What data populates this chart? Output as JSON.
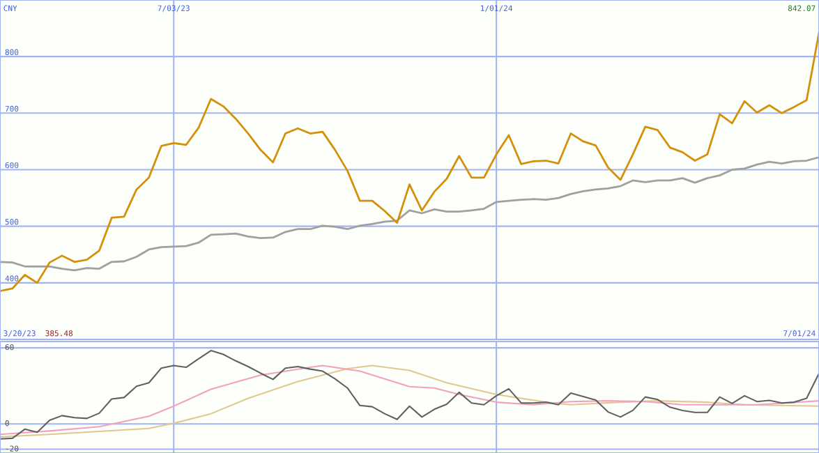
{
  "chart_data": [
    {
      "type": "line",
      "x": [
        "2023-03-27",
        "2023-04-03",
        "2023-04-10",
        "2023-04-17",
        "2023-04-24",
        "2023-05-01",
        "2023-05-08",
        "2023-05-15",
        "2023-05-22",
        "2023-05-29",
        "2023-06-05",
        "2023-06-12",
        "2023-06-19",
        "2023-06-26",
        "2023-07-03",
        "2023-07-10",
        "2023-07-17",
        "2023-07-24",
        "2023-07-31",
        "2023-08-07",
        "2023-08-14",
        "2023-08-21",
        "2023-08-28",
        "2023-09-04",
        "2023-09-11",
        "2023-09-18",
        "2023-09-25",
        "2023-10-02",
        "2023-10-09",
        "2023-10-16",
        "2023-10-23",
        "2023-10-30",
        "2023-11-06",
        "2023-11-13",
        "2023-11-20",
        "2023-11-27",
        "2023-12-04",
        "2023-12-11",
        "2023-12-18",
        "2023-12-25",
        "2024-01-01",
        "2024-01-08",
        "2024-01-15",
        "2024-01-22",
        "2024-01-29",
        "2024-02-05",
        "2024-02-12",
        "2024-02-19",
        "2024-02-26",
        "2024-03-04",
        "2024-03-11",
        "2024-03-18",
        "2024-03-25",
        "2024-04-01",
        "2024-04-08",
        "2024-04-15",
        "2024-04-22",
        "2024-04-29",
        "2024-05-06",
        "2024-05-13",
        "2024-05-20",
        "2024-05-27",
        "2024-06-03",
        "2024-06-10",
        "2024-06-17",
        "2024-06-24",
        "2024-07-01"
      ],
      "series": [
        {
          "color": "#a0a0a0",
          "values": [
            437,
            436,
            429,
            429,
            429,
            425,
            422,
            426,
            425,
            437,
            438,
            446,
            459,
            463,
            464,
            465,
            471,
            485,
            486,
            487,
            482,
            479,
            480,
            490,
            495,
            495,
            501,
            499,
            495,
            501,
            504,
            508,
            510,
            528,
            523,
            530,
            526,
            526,
            528,
            531,
            543,
            545,
            547,
            548,
            547,
            550,
            557,
            562,
            565,
            567,
            571,
            581,
            578,
            581,
            581,
            585,
            577,
            585,
            590,
            600,
            602,
            609,
            614,
            611,
            615,
            616,
            622
          ]
        },
        {
          "color": "#d4900a",
          "values": [
            385.48,
            390,
            414,
            400,
            436,
            448,
            437,
            441,
            457,
            515,
            517,
            565,
            586,
            642,
            647,
            644,
            674,
            725,
            712,
            690,
            664,
            635,
            613,
            664,
            673,
            664,
            667,
            635,
            598,
            545,
            545,
            527,
            506,
            574,
            528,
            561,
            584,
            624,
            586,
            586,
            627,
            661,
            610,
            615,
            616,
            611,
            664,
            650,
            643,
            604,
            582,
            627,
            676,
            670,
            639,
            631,
            616,
            627,
            698,
            682,
            721,
            701,
            714,
            700,
            711,
            723,
            842.07
          ]
        }
      ],
      "xlim": [
        "2023-03-27",
        "2024-07-01"
      ],
      "xticks": [
        {
          "value": "2023-07-03",
          "label": "7/03/23"
        },
        {
          "value": "2024-01-01",
          "label": "1/01/24"
        }
      ],
      "ylim": [
        300,
        900
      ],
      "yticks": [
        400,
        500,
        600,
        700,
        800
      ],
      "grid": true,
      "marker": "none",
      "line_style": "solid",
      "annotations": [
        "CNY",
        "842.07",
        "3/20/23",
        "385.48",
        "7/01/24"
      ]
    },
    {
      "type": "line",
      "x": [
        "2023-03-27",
        "2023-04-03",
        "2023-04-10",
        "2023-04-17",
        "2023-04-24",
        "2023-05-01",
        "2023-05-08",
        "2023-05-15",
        "2023-05-22",
        "2023-05-29",
        "2023-06-05",
        "2023-06-12",
        "2023-06-19",
        "2023-06-26",
        "2023-07-03",
        "2023-07-10",
        "2023-07-17",
        "2023-07-24",
        "2023-07-31",
        "2023-08-07",
        "2023-08-14",
        "2023-08-21",
        "2023-08-28",
        "2023-09-04",
        "2023-09-11",
        "2023-09-18",
        "2023-09-25",
        "2023-10-02",
        "2023-10-09",
        "2023-10-16",
        "2023-10-23",
        "2023-10-30",
        "2023-11-06",
        "2023-11-13",
        "2023-11-20",
        "2023-11-27",
        "2023-12-04",
        "2023-12-11",
        "2023-12-18",
        "2023-12-25",
        "2024-01-01",
        "2024-01-08",
        "2024-01-15",
        "2024-01-22",
        "2024-01-29",
        "2024-02-05",
        "2024-02-12",
        "2024-02-19",
        "2024-02-26",
        "2024-03-04",
        "2024-03-11",
        "2024-03-18",
        "2024-03-25",
        "2024-04-01",
        "2024-04-08",
        "2024-04-15",
        "2024-04-22",
        "2024-04-29",
        "2024-05-06",
        "2024-05-13",
        "2024-05-20",
        "2024-05-27",
        "2024-06-03",
        "2024-06-10",
        "2024-06-17",
        "2024-06-24",
        "2024-07-01"
      ],
      "series": [
        {
          "color": "#e0c890",
          "x": [
            "2023-03-27",
            "2023-04-24",
            "2023-06-19",
            "2023-07-03",
            "2023-07-24",
            "2023-08-14",
            "2023-09-11",
            "2023-10-09",
            "2023-10-23",
            "2023-11-13",
            "2023-12-04",
            "2024-01-01",
            "2024-01-29",
            "2024-02-12",
            "2024-03-11",
            "2024-04-01",
            "2024-04-29",
            "2024-05-20",
            "2024-07-01"
          ],
          "values": [
            -10.3,
            -8.3,
            -3.6,
            0.5,
            8,
            20.2,
            33.4,
            43.6,
            46,
            42.2,
            32.4,
            23.2,
            17.1,
            15.1,
            17.1,
            18.2,
            17.1,
            15.1,
            14
          ]
        },
        {
          "color": "#f4a0c0",
          "x": [
            "2023-03-27",
            "2023-04-24",
            "2023-05-22",
            "2023-06-19",
            "2023-07-03",
            "2023-07-24",
            "2023-08-21",
            "2023-09-18",
            "2023-09-25",
            "2023-10-16",
            "2023-11-13",
            "2023-11-27",
            "2023-12-11",
            "2024-01-01",
            "2024-01-22",
            "2024-02-12",
            "2024-03-04",
            "2024-03-25",
            "2024-04-15",
            "2024-05-06",
            "2024-05-27",
            "2024-06-17",
            "2024-07-01"
          ],
          "values": [
            -8.3,
            -5.6,
            -2.2,
            6,
            14,
            27.3,
            38.5,
            44.6,
            46,
            41.6,
            29.4,
            28.3,
            23.2,
            17.1,
            15.1,
            17.6,
            18.2,
            17.6,
            15.1,
            15.1,
            15.1,
            16.9,
            18.2
          ]
        },
        {
          "color": "#606060",
          "values": [
            -11.9,
            -11.4,
            -4.2,
            -6.6,
            2.9,
            6.5,
            4.9,
            4.3,
            8.4,
            19.6,
            20.8,
            29.7,
            32.4,
            44,
            46,
            44.6,
            51.3,
            57.8,
            54.8,
            49.7,
            45.2,
            40,
            35.1,
            44,
            45.2,
            43.2,
            41.6,
            35.5,
            28.3,
            14.5,
            13.5,
            8,
            3.5,
            14,
            5.4,
            11.5,
            15.5,
            24.9,
            16.5,
            15.1,
            22.2,
            27.7,
            16.5,
            16.5,
            17.1,
            15.1,
            24.3,
            21.6,
            18.8,
            9.4,
            5.4,
            10.6,
            21.2,
            19.2,
            13.1,
            10.6,
            9,
            9,
            21.2,
            16.1,
            22.2,
            17.6,
            18.5,
            16.5,
            17.1,
            20.2,
            39.9
          ]
        }
      ],
      "xlim": [
        "2023-03-27",
        "2024-07-01"
      ],
      "xticks": [
        {
          "value": "2023-07-03",
          "label": null
        },
        {
          "value": "2024-01-01",
          "label": null
        }
      ],
      "ylim": [
        -23,
        65
      ],
      "yticks": [
        -20,
        0,
        60
      ],
      "grid": true,
      "marker": "none",
      "line_style": "solid",
      "tick_labels": "y"
    }
  ]
}
